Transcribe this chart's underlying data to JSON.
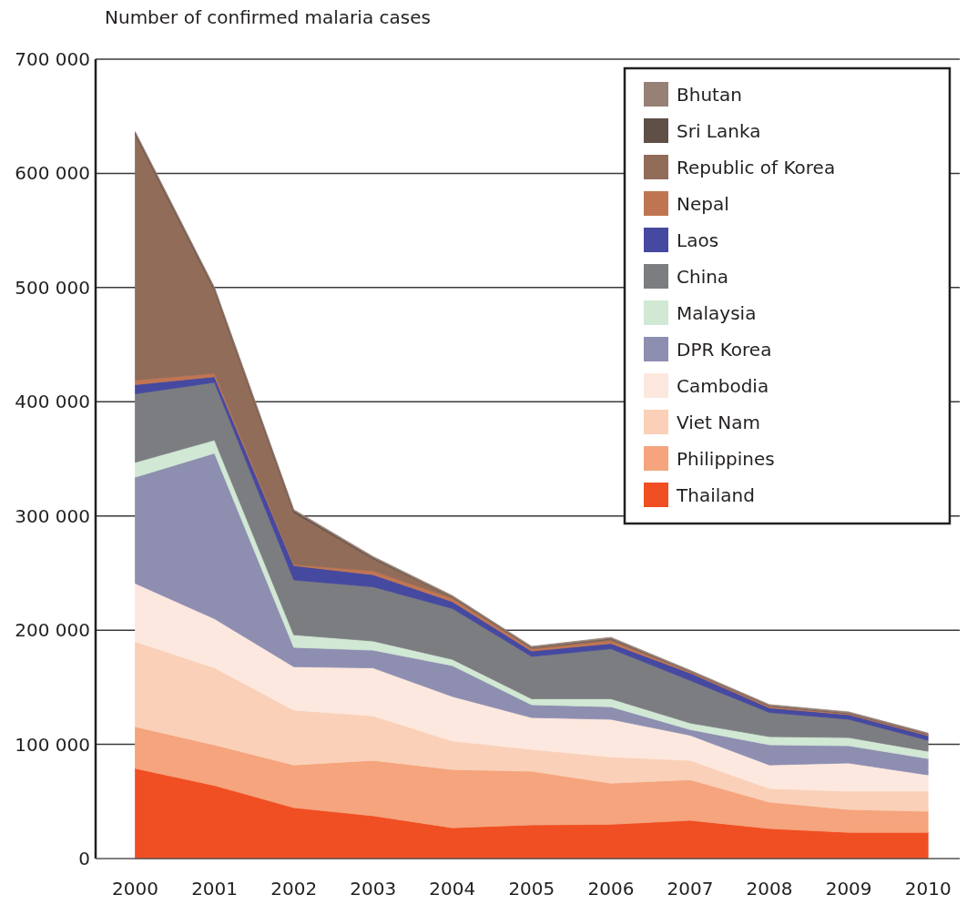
{
  "chart_data": {
    "type": "area",
    "stacked": true,
    "ylabel": "Number of confirmed malaria cases",
    "x": [
      2000,
      2001,
      2002,
      2003,
      2004,
      2005,
      2006,
      2007,
      2008,
      2009,
      2010
    ],
    "xlim": [
      1999.5,
      2010.4
    ],
    "xticks": [
      2000,
      2001,
      2002,
      2003,
      2004,
      2005,
      2006,
      2007,
      2008,
      2009,
      2010
    ],
    "ylim": [
      0,
      700000
    ],
    "yticks": [
      0,
      {
        "value": 100000,
        "label": "100 000"
      },
      {
        "value": 200000,
        "label": "200 000"
      },
      {
        "value": 300000,
        "label": "300 000"
      },
      {
        "value": 400000,
        "label": "400 000"
      },
      {
        "value": 500000,
        "label": "500 000"
      },
      {
        "value": 600000,
        "label": "600 000"
      },
      {
        "value": 700000,
        "label": "700 000"
      }
    ],
    "grid": "y",
    "legend": "top right",
    "series": [
      {
        "name": "Thailand",
        "color": "#f04e23",
        "values": [
          79000,
          64000,
          44600,
          37500,
          27000,
          29500,
          30000,
          33500,
          26300,
          23000,
          23000
        ]
      },
      {
        "name": "Philippines",
        "color": "#f5a47d",
        "values": [
          36500,
          35500,
          37400,
          48500,
          51000,
          47000,
          36000,
          35500,
          23100,
          20000,
          18400
        ]
      },
      {
        "name": "Viet Nam",
        "color": "#fad0b8",
        "values": [
          74500,
          67500,
          48000,
          39000,
          25000,
          19100,
          23000,
          17000,
          12000,
          16000,
          17600
        ]
      },
      {
        "name": "Cambodia",
        "color": "#fde8df",
        "values": [
          51000,
          43000,
          38000,
          42000,
          39000,
          27900,
          33000,
          22000,
          20600,
          24700,
          14300
        ]
      },
      {
        "name": "DPR Korea",
        "color": "#8e8eb1",
        "values": [
          93000,
          145000,
          17000,
          15500,
          27000,
          11200,
          11000,
          5000,
          17600,
          15100,
          14300
        ]
      },
      {
        "name": "Malaysia",
        "color": "#d1e8d4",
        "values": [
          13000,
          11500,
          11000,
          8000,
          5500,
          5300,
          7000,
          5700,
          7200,
          7200,
          6400
        ]
      },
      {
        "name": "China",
        "color": "#7c7d81",
        "values": [
          60000,
          50500,
          48000,
          47500,
          44500,
          37000,
          43700,
          37300,
          21200,
          16000,
          9600
        ]
      },
      {
        "name": "Laos",
        "color": "#4549a0",
        "values": [
          8000,
          5000,
          12500,
          10600,
          6000,
          4700,
          4700,
          6500,
          4000,
          4000,
          4000
        ]
      },
      {
        "name": "Nepal",
        "color": "#c07552",
        "values": [
          4000,
          3000,
          1000,
          3400,
          3000,
          2000,
          2600,
          1000,
          1000,
          700,
          800
        ]
      },
      {
        "name": "Republic of Korea",
        "color": "#916c58",
        "values": [
          215000,
          72500,
          45500,
          10500,
          1000,
          800,
          1200,
          300,
          600,
          500,
          300
        ]
      },
      {
        "name": "Sri Lanka",
        "color": "#5f4f47",
        "values": [
          1500,
          1500,
          1500,
          1000,
          300,
          300,
          500,
          100,
          200,
          200,
          200
        ]
      },
      {
        "name": "Bhutan",
        "color": "#978076",
        "values": [
          1000,
          1000,
          1000,
          1000,
          1000,
          1000,
          1000,
          1000,
          1000,
          1000,
          1000
        ]
      }
    ]
  }
}
